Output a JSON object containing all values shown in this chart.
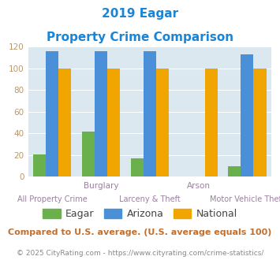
{
  "title_line1": "2019 Eagar",
  "title_line2": "Property Crime Comparison",
  "categories": [
    "All Property Crime",
    "Burglary",
    "Larceny & Theft",
    "Arson",
    "Motor Vehicle Theft"
  ],
  "top_labels": [
    "",
    "Burglary",
    "",
    "Arson",
    ""
  ],
  "bottom_labels": [
    "All Property Crime",
    "",
    "Larceny & Theft",
    "",
    "Motor Vehicle Theft"
  ],
  "eagar": [
    21,
    42,
    17,
    0,
    10
  ],
  "arizona": [
    116,
    116,
    116,
    0,
    113
  ],
  "national": [
    100,
    100,
    100,
    100,
    100
  ],
  "eagar_color": "#6ab04c",
  "arizona_color": "#4a90d9",
  "national_color": "#f0a500",
  "bg_color": "#dce8f0",
  "ylim": [
    0,
    120
  ],
  "yticks": [
    0,
    20,
    40,
    60,
    80,
    100,
    120
  ],
  "footnote": "Compared to U.S. average. (U.S. average equals 100)",
  "copyright": "© 2025 CityRating.com - https://www.cityrating.com/crime-statistics/",
  "title_color": "#1a85d6",
  "xlabel_top_color": "#9b7fa0",
  "xlabel_bot_color": "#9b7fa0",
  "ylabel_color": "#b8986a",
  "footnote_color": "#c07030",
  "copyright_color": "#888888",
  "copyright_link_color": "#4a90d9"
}
